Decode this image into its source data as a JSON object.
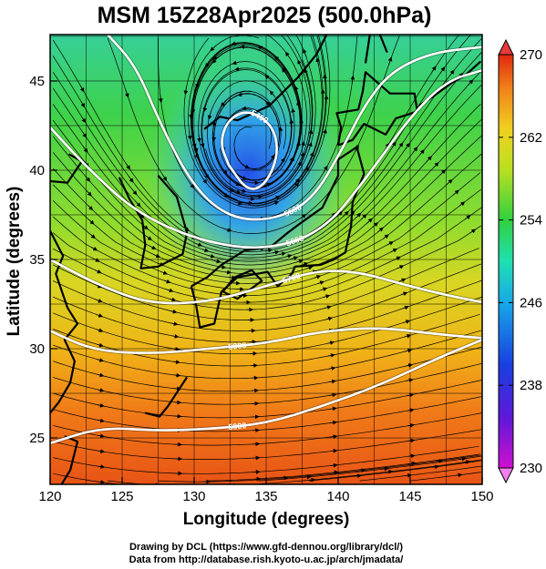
{
  "title": "MSM 15Z28Apr2025 (500.0hPa)",
  "map": {
    "xlabel": "Longitude (degrees)",
    "ylabel": "Latitude  (degrees)",
    "xlim": [
      120,
      150
    ],
    "ylim": [
      22.4,
      47.6
    ],
    "xticks": [
      {
        "v": 120,
        "label": "120"
      },
      {
        "v": 125,
        "label": "125"
      },
      {
        "v": 130,
        "label": "130"
      },
      {
        "v": 135,
        "label": "135"
      },
      {
        "v": 140,
        "label": "140"
      },
      {
        "v": 145,
        "label": "145"
      },
      {
        "v": 150,
        "label": "150"
      }
    ],
    "yticks": [
      {
        "v": 25,
        "label": "25"
      },
      {
        "v": 30,
        "label": "30"
      },
      {
        "v": 35,
        "label": "35"
      },
      {
        "v": 40,
        "label": "40"
      },
      {
        "v": 45,
        "label": "45"
      }
    ],
    "grid": true,
    "low_center": {
      "lon": 134.0,
      "lat": 41.2
    },
    "contours": [
      {
        "label": "5400",
        "points": [
          [
            132.4,
            40.3
          ],
          [
            131.8,
            41.5
          ],
          [
            132.3,
            42.8
          ],
          [
            133.7,
            43.4
          ],
          [
            135.4,
            42.6
          ],
          [
            135.9,
            41.0
          ],
          [
            135.0,
            39.2
          ],
          [
            133.7,
            38.8
          ],
          [
            132.4,
            40.3
          ]
        ]
      },
      {
        "label": "5500",
        "points": [
          [
            124.0,
            47.6
          ],
          [
            126.0,
            45.8
          ],
          [
            127.7,
            42.5
          ],
          [
            130.0,
            39.0
          ],
          [
            132.5,
            37.3
          ],
          [
            135.5,
            37.2
          ],
          [
            138.2,
            38.3
          ],
          [
            140.3,
            41.2
          ],
          [
            141.8,
            43.6
          ],
          [
            143.6,
            45.5
          ],
          [
            146.5,
            46.6
          ],
          [
            150.0,
            46.9
          ]
        ]
      },
      {
        "label": "5600",
        "points": [
          [
            120.0,
            42.4
          ],
          [
            122.5,
            40.2
          ],
          [
            126.0,
            37.6
          ],
          [
            130.5,
            36.0
          ],
          [
            135.0,
            35.5
          ],
          [
            139.0,
            36.6
          ],
          [
            142.0,
            39.6
          ],
          [
            145.0,
            43.0
          ],
          [
            147.5,
            45.0
          ],
          [
            150.0,
            45.6
          ]
        ]
      },
      {
        "label": "5700",
        "points": [
          [
            120.0,
            35.0
          ],
          [
            123.5,
            33.5
          ],
          [
            127.0,
            32.5
          ],
          [
            131.0,
            32.6
          ],
          [
            135.0,
            33.5
          ],
          [
            138.5,
            34.4
          ],
          [
            141.5,
            34.3
          ],
          [
            144.5,
            33.6
          ],
          [
            147.5,
            33.0
          ],
          [
            150.0,
            32.6
          ]
        ]
      },
      {
        "label": "5800",
        "points": [
          [
            120.0,
            31.0
          ],
          [
            123.0,
            29.9
          ],
          [
            127.0,
            29.7
          ],
          [
            131.0,
            30.0
          ],
          [
            135.0,
            30.3
          ],
          [
            139.0,
            31.0
          ],
          [
            143.0,
            31.2
          ],
          [
            147.0,
            30.8
          ],
          [
            150.0,
            30.6
          ]
        ]
      },
      {
        "label": "5900",
        "points": [
          [
            120.0,
            24.7
          ],
          [
            123.5,
            25.6
          ],
          [
            127.5,
            25.4
          ],
          [
            131.0,
            25.5
          ],
          [
            135.0,
            25.8
          ],
          [
            139.0,
            26.8
          ],
          [
            143.0,
            28.0
          ],
          [
            147.0,
            29.5
          ],
          [
            150.0,
            30.5
          ]
        ]
      }
    ],
    "coastlines": [
      {
        "name": "Korea",
        "points": [
          [
            127.5,
            39.7
          ],
          [
            128.8,
            38.5
          ],
          [
            129.5,
            36.5
          ],
          [
            129.2,
            35.3
          ],
          [
            127.5,
            34.6
          ],
          [
            126.3,
            34.5
          ],
          [
            126.6,
            35.8
          ],
          [
            126.4,
            37.2
          ],
          [
            125.5,
            38.4
          ],
          [
            124.8,
            39.6
          ]
        ]
      },
      {
        "name": "China coast",
        "points": [
          [
            121.3,
            40.9
          ],
          [
            122.2,
            40.5
          ],
          [
            121.2,
            39.3
          ],
          [
            119.8,
            39.4
          ]
        ]
      },
      {
        "name": "China coast south",
        "points": [
          [
            120.0,
            36.6
          ],
          [
            120.9,
            35.2
          ],
          [
            120.4,
            34.2
          ],
          [
            121.2,
            32.3
          ],
          [
            121.9,
            31.4
          ],
          [
            121.0,
            30.5
          ],
          [
            121.7,
            29.3
          ],
          [
            121.4,
            28.1
          ],
          [
            120.6,
            27.0
          ],
          [
            120.0,
            26.4
          ]
        ]
      },
      {
        "name": "Kyushu-Honshu",
        "points": [
          [
            129.8,
            33.5
          ],
          [
            130.9,
            34.0
          ],
          [
            131.9,
            34.7
          ],
          [
            133.5,
            35.5
          ],
          [
            135.3,
            35.7
          ],
          [
            136.5,
            36.5
          ],
          [
            137.5,
            37.1
          ],
          [
            138.9,
            37.9
          ],
          [
            140.0,
            39.7
          ],
          [
            140.0,
            40.6
          ],
          [
            141.3,
            41.3
          ],
          [
            141.8,
            39.8
          ],
          [
            141.0,
            38.2
          ],
          [
            140.9,
            36.9
          ],
          [
            140.5,
            35.4
          ],
          [
            139.7,
            35.0
          ],
          [
            138.8,
            34.7
          ],
          [
            137.0,
            34.6
          ],
          [
            136.8,
            34.2
          ],
          [
            135.8,
            33.5
          ],
          [
            135.1,
            34.3
          ],
          [
            133.0,
            34.0
          ],
          [
            131.9,
            33.2
          ],
          [
            131.4,
            31.4
          ],
          [
            130.4,
            31.2
          ],
          [
            130.1,
            32.6
          ],
          [
            129.8,
            33.5
          ]
        ]
      },
      {
        "name": "Shikoku",
        "points": [
          [
            132.0,
            33.2
          ],
          [
            133.0,
            32.8
          ],
          [
            134.7,
            33.8
          ],
          [
            134.0,
            34.4
          ],
          [
            132.8,
            34.0
          ],
          [
            132.0,
            33.2
          ]
        ]
      },
      {
        "name": "Hokkaido",
        "points": [
          [
            140.0,
            41.4
          ],
          [
            140.2,
            42.4
          ],
          [
            139.9,
            43.2
          ],
          [
            141.4,
            43.4
          ],
          [
            141.7,
            44.4
          ],
          [
            141.9,
            45.5
          ],
          [
            143.6,
            44.3
          ],
          [
            145.3,
            44.3
          ],
          [
            145.5,
            43.3
          ],
          [
            144.0,
            42.9
          ],
          [
            143.3,
            42.0
          ],
          [
            141.8,
            42.6
          ],
          [
            141.0,
            41.7
          ],
          [
            140.0,
            41.4
          ]
        ]
      },
      {
        "name": "Sakhalin",
        "points": [
          [
            141.9,
            46.0
          ],
          [
            142.2,
            47.6
          ]
        ]
      },
      {
        "name": "Sakhalin east",
        "points": [
          [
            143.4,
            46.6
          ],
          [
            142.9,
            47.6
          ]
        ]
      },
      {
        "name": "Kurils",
        "points": [
          [
            145.6,
            43.6
          ],
          [
            146.7,
            44.2
          ],
          [
            147.9,
            44.9
          ],
          [
            148.8,
            45.3
          ],
          [
            149.9,
            46.1
          ]
        ]
      },
      {
        "name": "Primorye",
        "points": [
          [
            130.7,
            42.3
          ],
          [
            131.8,
            43.0
          ],
          [
            133.0,
            42.8
          ],
          [
            135.2,
            43.6
          ],
          [
            137.2,
            45.2
          ],
          [
            138.5,
            46.5
          ],
          [
            139.2,
            47.6
          ]
        ]
      },
      {
        "name": "Ryukyu",
        "points": [
          [
            129.5,
            28.4
          ],
          [
            128.2,
            26.8
          ],
          [
            127.6,
            26.2
          ],
          [
            126.6,
            26.4
          ]
        ]
      },
      {
        "name": "Taiwan",
        "points": [
          [
            121.0,
            25.1
          ],
          [
            121.9,
            24.8
          ],
          [
            121.4,
            23.2
          ],
          [
            120.8,
            22.4
          ]
        ]
      }
    ]
  },
  "colorbar": {
    "min": 230,
    "max": 270,
    "ticks": [
      {
        "v": 230,
        "label": "230"
      },
      {
        "v": 238,
        "label": "238"
      },
      {
        "v": 246,
        "label": "246"
      },
      {
        "v": 254,
        "label": "254"
      },
      {
        "v": 262,
        "label": "262"
      },
      {
        "v": 270,
        "label": "270"
      }
    ]
  },
  "credits": [
    "Drawing by DCL (https://www.gfd-dennou.org/library/dcl/)",
    "Data from http://database.rish.kyoto-u.ac.jp/arch/jmadata/"
  ]
}
